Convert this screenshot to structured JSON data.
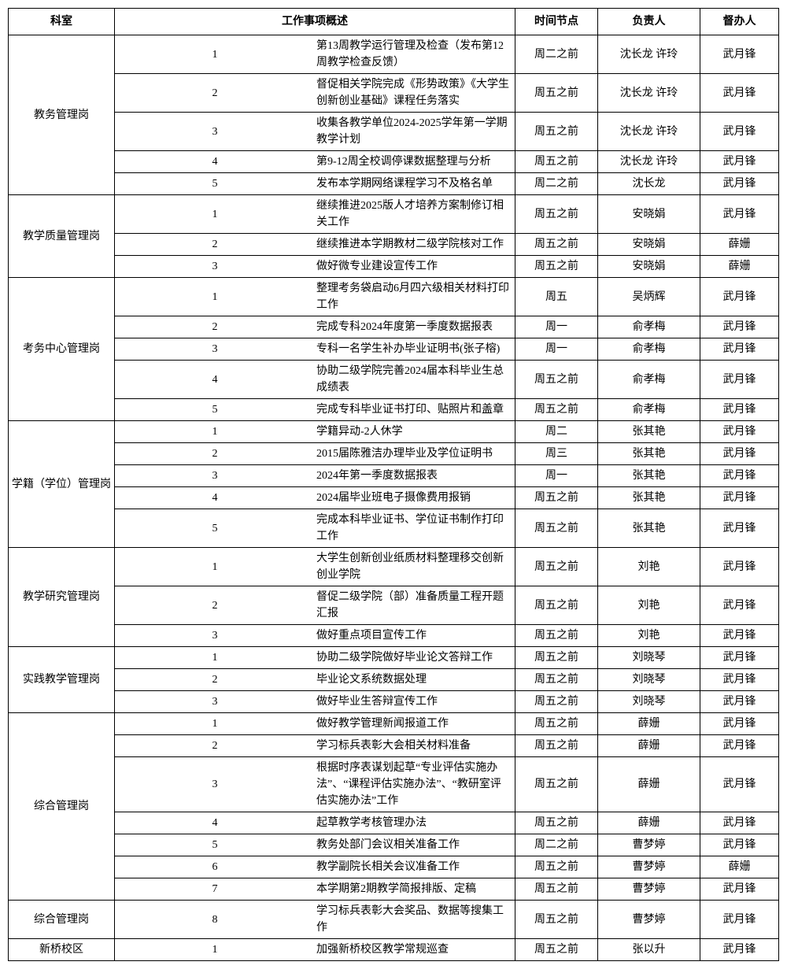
{
  "headers": {
    "dept": "科室",
    "desc": "工作事项概述",
    "time": "时间节点",
    "owner": "负责人",
    "supervisor": "督办人"
  },
  "sections": [
    {
      "dept": "教务管理岗",
      "rows": [
        {
          "num": "1",
          "desc": "第13周教学运行管理及检查（发布第12周教学检查反馈）",
          "time": "周二之前",
          "owner": "沈长龙 许玲",
          "supervisor": "武月锋"
        },
        {
          "num": "2",
          "desc": "督促相关学院完成《形势政策》《大学生创新创业基础》课程任务落实",
          "time": "周五之前",
          "owner": "沈长龙 许玲",
          "supervisor": "武月锋"
        },
        {
          "num": "3",
          "desc": "收集各教学单位2024-2025学年第一学期教学计划",
          "time": "周五之前",
          "owner": "沈长龙 许玲",
          "supervisor": "武月锋"
        },
        {
          "num": "4",
          "desc": "第9-12周全校调停课数据整理与分析",
          "time": "周五之前",
          "owner": "沈长龙 许玲",
          "supervisor": "武月锋"
        },
        {
          "num": "5",
          "desc": "发布本学期网络课程学习不及格名单",
          "time": "周二之前",
          "owner": "沈长龙",
          "supervisor": "武月锋"
        }
      ]
    },
    {
      "dept": "教学质量管理岗",
      "rows": [
        {
          "num": "1",
          "desc": "继续推进2025版人才培养方案制修订相关工作",
          "time": "周五之前",
          "owner": "安晓娟",
          "supervisor": "武月锋"
        },
        {
          "num": "2",
          "desc": "继续推进本学期教材二级学院核对工作",
          "time": "周五之前",
          "owner": "安晓娟",
          "supervisor": "薛姗"
        },
        {
          "num": "3",
          "desc": "做好微专业建设宣传工作",
          "time": "周五之前",
          "owner": "安晓娟",
          "supervisor": "薛姗"
        }
      ]
    },
    {
      "dept": "考务中心管理岗",
      "rows": [
        {
          "num": "1",
          "desc": "整理考务袋启动6月四六级相关材料打印工作",
          "time": "周五",
          "owner": "吴炳辉",
          "supervisor": "武月锋"
        },
        {
          "num": "2",
          "desc": "完成专科2024年度第一季度数据报表",
          "time": "周一",
          "owner": "俞孝梅",
          "supervisor": "武月锋"
        },
        {
          "num": "3",
          "desc": "专科一名学生补办毕业证明书(张子榕)",
          "time": "周一",
          "owner": "俞孝梅",
          "supervisor": "武月锋"
        },
        {
          "num": "4",
          "desc": "协助二级学院完善2024届本科毕业生总成绩表",
          "time": "周五之前",
          "owner": "俞孝梅",
          "supervisor": "武月锋"
        },
        {
          "num": "5",
          "desc": "完成专科毕业证书打印、贴照片和盖章",
          "time": "周五之前",
          "owner": "俞孝梅",
          "supervisor": "武月锋"
        }
      ]
    },
    {
      "dept": "学籍（学位）管理岗",
      "rows": [
        {
          "num": "1",
          "desc": "学籍异动-2人休学",
          "time": "周二",
          "owner": "张其艳",
          "supervisor": "武月锋"
        },
        {
          "num": "2",
          "desc": "2015届陈雅洁办理毕业及学位证明书",
          "time": "周三",
          "owner": "张其艳",
          "supervisor": "武月锋"
        },
        {
          "num": "3",
          "desc": "2024年第一季度数据报表",
          "time": "周一",
          "owner": "张其艳",
          "supervisor": "武月锋"
        },
        {
          "num": "4",
          "desc": "2024届毕业班电子摄像费用报销",
          "time": "周五之前",
          "owner": "张其艳",
          "supervisor": "武月锋"
        },
        {
          "num": "5",
          "desc": "完成本科毕业证书、学位证书制作打印工作",
          "time": "周五之前",
          "owner": "张其艳",
          "supervisor": "武月锋"
        }
      ]
    },
    {
      "dept": "教学研究管理岗",
      "rows": [
        {
          "num": "1",
          "desc": "大学生创新创业纸质材料整理移交创新创业学院",
          "time": "周五之前",
          "owner": "刘艳",
          "supervisor": "武月锋"
        },
        {
          "num": "2",
          "desc": "督促二级学院（部）准备质量工程开题汇报",
          "time": "周五之前",
          "owner": "刘艳",
          "supervisor": "武月锋"
        },
        {
          "num": "3",
          "desc": "做好重点项目宣传工作",
          "time": "周五之前",
          "owner": "刘艳",
          "supervisor": "武月锋"
        }
      ]
    },
    {
      "dept": "实践教学管理岗",
      "rows": [
        {
          "num": "1",
          "desc": "协助二级学院做好毕业论文答辩工作",
          "time": "周五之前",
          "owner": "刘晓琴",
          "supervisor": "武月锋"
        },
        {
          "num": "2",
          "desc": "毕业论文系统数据处理",
          "time": "周五之前",
          "owner": "刘晓琴",
          "supervisor": "武月锋"
        },
        {
          "num": "3",
          "desc": "做好毕业生答辩宣传工作",
          "time": "周五之前",
          "owner": "刘晓琴",
          "supervisor": "武月锋"
        }
      ]
    },
    {
      "dept": "综合管理岗",
      "rows": [
        {
          "num": "1",
          "desc": "做好教学管理新闻报道工作",
          "time": "周五之前",
          "owner": "薛姗",
          "supervisor": "武月锋"
        },
        {
          "num": "2",
          "desc": "学习标兵表彰大会相关材料准备",
          "time": "周五之前",
          "owner": "薛姗",
          "supervisor": "武月锋"
        },
        {
          "num": "3",
          "desc": "根据时序表谋划起草“专业评估实施办法”、“课程评估实施办法”、“教研室评估实施办法”工作",
          "time": "周五之前",
          "owner": "薛姗",
          "supervisor": "武月锋",
          "tall": true
        },
        {
          "num": "4",
          "desc": "起草教学考核管理办法",
          "time": "周五之前",
          "owner": "薛姗",
          "supervisor": "武月锋"
        },
        {
          "num": "5",
          "desc": "教务处部门会议相关准备工作",
          "time": "周二之前",
          "owner": "曹梦婷",
          "supervisor": "武月锋"
        },
        {
          "num": "6",
          "desc": "教学副院长相关会议准备工作",
          "time": "周五之前",
          "owner": "曹梦婷",
          "supervisor": "薛姗"
        },
        {
          "num": "7",
          "desc": "本学期第2期教学简报排版、定稿",
          "time": "周五之前",
          "owner": "曹梦婷",
          "supervisor": "武月锋"
        }
      ]
    },
    {
      "dept": "综合管理岗",
      "rows": [
        {
          "num": "8",
          "desc": "学习标兵表彰大会奖品、数据等搜集工作",
          "time": "周五之前",
          "owner": "曹梦婷",
          "supervisor": "武月锋"
        }
      ]
    },
    {
      "dept": "新桥校区",
      "rows": [
        {
          "num": "1",
          "desc": "加强新桥校区教学常规巡查",
          "time": "周五之前",
          "owner": "张以升",
          "supervisor": "武月锋"
        }
      ]
    }
  ]
}
